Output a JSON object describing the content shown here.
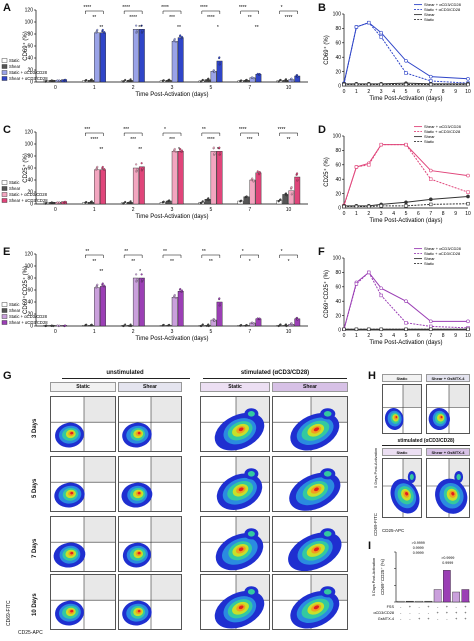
{
  "panels": {
    "A": {
      "letter": "A",
      "ylabel": "CD69⁺ (%)",
      "xlabel": "Time Post-Activation (days)",
      "categories": [
        "0",
        "1",
        "2",
        "3",
        "5",
        "7",
        "10"
      ],
      "yticks": [
        "0",
        "20",
        "40",
        "60",
        "80",
        "100",
        "120"
      ],
      "legend": [
        "Static",
        "Shear",
        "Static + αCD3/CD28",
        "Shear + αCD3/CD28"
      ],
      "stars": [
        "****",
        "****",
        "****",
        "****",
        "****",
        "*",
        "**",
        "****",
        "***",
        "****",
        "**",
        "****",
        "**",
        "**",
        "**",
        "*",
        "**"
      ]
    },
    "B": {
      "letter": "B",
      "ylabel": "CD69⁺ (%)",
      "xlabel": "Time Post-Activation (days)",
      "xticks": [
        "0",
        "1",
        "2",
        "3",
        "4",
        "5",
        "6",
        "7",
        "8",
        "9",
        "10"
      ],
      "yticks": [
        "0",
        "20",
        "40",
        "60",
        "80",
        "100"
      ],
      "legend": [
        "Shear + αCD3/CD28",
        "Static + αCD3/CD28",
        "Shear",
        "Static"
      ]
    },
    "C": {
      "letter": "C",
      "ylabel": "CD25⁺ (%)",
      "xlabel": "Time Post-Activation (days)",
      "categories": [
        "0",
        "1",
        "2",
        "3",
        "5",
        "7",
        "10"
      ],
      "yticks": [
        "0",
        "20",
        "40",
        "60",
        "80",
        "100",
        "120"
      ],
      "legend": [
        "Static",
        "Shear",
        "Static + αCD3/CD28",
        "Shear + αCD3/CD28"
      ],
      "stars": [
        "***",
        "***",
        "*",
        "**",
        "****",
        "****",
        "****",
        "***",
        "***",
        "****",
        "***",
        "**",
        "**",
        "**",
        "*",
        "*"
      ]
    },
    "D": {
      "letter": "D",
      "ylabel": "CD25⁺ (%)",
      "xlabel": "Time Post-Activation (days)",
      "xticks": [
        "0",
        "1",
        "2",
        "3",
        "4",
        "5",
        "6",
        "7",
        "8",
        "9",
        "10"
      ],
      "yticks": [
        "0",
        "20",
        "40",
        "60",
        "80",
        "100"
      ],
      "legend": [
        "Shear + αCD3/CD28",
        "Static + αCD3/CD28",
        "Shear",
        "Static"
      ]
    },
    "E": {
      "letter": "E",
      "ylabel": "CD69⁺CD25⁺ (%)",
      "xlabel": "Time Post-Activation (days)",
      "categories": [
        "0",
        "1",
        "2",
        "3",
        "5",
        "7",
        "10"
      ],
      "yticks": [
        "0",
        "20",
        "40",
        "60",
        "80",
        "100",
        "120"
      ],
      "legend": [
        "Static",
        "Shear",
        "Static + αCD3/CD28",
        "Shear + αCD3/CD28"
      ],
      "stars": [
        "**",
        "**",
        "**",
        "**",
        "*",
        "*",
        "**",
        "**",
        "**",
        "**",
        "*",
        "*",
        "**",
        "*"
      ]
    },
    "F": {
      "letter": "F",
      "ylabel": "CD69⁺CD25⁺ (%)",
      "xlabel": "Time Post-Activation (days)",
      "xticks": [
        "0",
        "1",
        "2",
        "3",
        "4",
        "5",
        "6",
        "7",
        "8",
        "9",
        "10"
      ],
      "yticks": [
        "0",
        "20",
        "40",
        "60",
        "80",
        "100"
      ],
      "legend": [
        "Shear + αCD3/CD28",
        "Static + αCD3/CD28",
        "Shear",
        "Static"
      ]
    },
    "G": {
      "letter": "G",
      "unstim": "unstimulated",
      "stim": "stimulated (αCD3/CD28)",
      "cols": [
        "Static",
        "Shear",
        "Static",
        "Shear"
      ],
      "rows": [
        "3 Days",
        "5 Days",
        "7 Days",
        "10 Days"
      ],
      "xaxis": "CD25-APC",
      "yaxis": "CD69-FITC"
    },
    "H": {
      "letter": "H",
      "cols": [
        "Static",
        "Shear + GsMTX-4",
        "Static",
        "Shear + GsMTX-4"
      ],
      "stim": "stimulated (αCD3/CD28)",
      "side": "5 Days Post-Activation",
      "xaxis": "CD25-APC",
      "yaxis": "CD69-FITC"
    },
    "I": {
      "letter": "I",
      "ylabel": "CD69⁺CD25⁺ (%)",
      "side": "5 Days Post-Activation",
      "pvals": [
        ">0.9999",
        "0.9999",
        "0.9999",
        ">0.9999",
        "0.9999"
      ],
      "rows": [
        "FSS",
        "αCD3/CD28",
        "GsMTX-4"
      ],
      "signs": [
        [
          "-",
          "+",
          "-",
          "+",
          "-",
          "+",
          "-",
          "+"
        ],
        [
          "-",
          "-",
          "-",
          "-",
          "+",
          "+",
          "+",
          "+"
        ],
        [
          "-",
          "-",
          "+",
          "+",
          "-",
          "-",
          "+",
          "+"
        ]
      ]
    }
  },
  "chart_data": [
    {
      "type": "bar",
      "categories": [
        "0",
        "1",
        "2",
        "3",
        "5",
        "7",
        "10"
      ],
      "ylim": [
        0,
        120
      ],
      "series": [
        {
          "name": "Static",
          "values": [
            2,
            2,
            2,
            2,
            2,
            2,
            2
          ]
        },
        {
          "name": "Shear",
          "values": [
            3,
            3,
            3,
            3,
            4,
            3,
            3
          ]
        },
        {
          "name": "Static + αCD3/CD28",
          "values": [
            3,
            82,
            88,
            68,
            18,
            7,
            4
          ]
        },
        {
          "name": "Shear + αCD3/CD28",
          "values": [
            4,
            82,
            88,
            74,
            35,
            13,
            10
          ]
        }
      ]
    },
    {
      "type": "line",
      "x": [
        0,
        1,
        2,
        3,
        5,
        7,
        10
      ],
      "ylim": [
        0,
        100
      ],
      "series": [
        {
          "name": "Shear + αCD3/CD28",
          "values": [
            4,
            82,
            88,
            74,
            35,
            13,
            10
          ]
        },
        {
          "name": "Static + αCD3/CD28",
          "values": [
            3,
            82,
            88,
            68,
            18,
            7,
            4
          ]
        },
        {
          "name": "Shear",
          "values": [
            3,
            3,
            3,
            3,
            4,
            3,
            3
          ]
        },
        {
          "name": "Static",
          "values": [
            2,
            2,
            2,
            2,
            2,
            2,
            2
          ]
        }
      ]
    },
    {
      "type": "bar",
      "categories": [
        "0",
        "1",
        "2",
        "3",
        "5",
        "7",
        "10"
      ],
      "ylim": [
        0,
        120
      ],
      "series": [
        {
          "name": "Static",
          "values": [
            2,
            2,
            2,
            3,
            3,
            5,
            6
          ]
        },
        {
          "name": "Shear",
          "values": [
            3,
            3,
            3,
            5,
            8,
            12,
            16
          ]
        },
        {
          "name": "Static + αCD3/CD28",
          "values": [
            3,
            57,
            60,
            88,
            88,
            40,
            22
          ]
        },
        {
          "name": "Shear + αCD3/CD28",
          "values": [
            4,
            57,
            62,
            88,
            88,
            52,
            45
          ]
        }
      ]
    },
    {
      "type": "line",
      "x": [
        0,
        1,
        2,
        3,
        5,
        7,
        10
      ],
      "ylim": [
        0,
        100
      ],
      "series": [
        {
          "name": "Shear + αCD3/CD28",
          "values": [
            4,
            57,
            62,
            88,
            88,
            52,
            45
          ]
        },
        {
          "name": "Static + αCD3/CD28",
          "values": [
            3,
            57,
            60,
            88,
            88,
            40,
            22
          ]
        },
        {
          "name": "Shear",
          "values": [
            3,
            3,
            3,
            5,
            8,
            12,
            16
          ]
        },
        {
          "name": "Static",
          "values": [
            2,
            2,
            2,
            3,
            3,
            5,
            6
          ]
        }
      ]
    },
    {
      "type": "bar",
      "categories": [
        "0",
        "1",
        "2",
        "3",
        "5",
        "7",
        "10"
      ],
      "ylim": [
        0,
        120
      ],
      "series": [
        {
          "name": "Static",
          "values": [
            1,
            1,
            1,
            1,
            1,
            1,
            1
          ]
        },
        {
          "name": "Shear",
          "values": [
            1,
            1,
            1,
            1,
            1,
            1,
            1
          ]
        },
        {
          "name": "Static + αCD3/CD28",
          "values": [
            1,
            64,
            80,
            48,
            10,
            5,
            3
          ]
        },
        {
          "name": "Shear + αCD3/CD28",
          "values": [
            1,
            66,
            80,
            58,
            40,
            12,
            12
          ]
        }
      ]
    },
    {
      "type": "line",
      "x": [
        0,
        1,
        2,
        3,
        5,
        7,
        10
      ],
      "ylim": [
        0,
        100
      ],
      "series": [
        {
          "name": "Shear + αCD3/CD28",
          "values": [
            1,
            66,
            80,
            58,
            40,
            12,
            12
          ]
        },
        {
          "name": "Static + αCD3/CD28",
          "values": [
            1,
            64,
            80,
            48,
            10,
            5,
            3
          ]
        },
        {
          "name": "Shear",
          "values": [
            1,
            1,
            1,
            1,
            1,
            1,
            1
          ]
        },
        {
          "name": "Static",
          "values": [
            1,
            1,
            1,
            1,
            1,
            1,
            1
          ]
        }
      ]
    },
    {
      "type": "bar",
      "categories": [
        "1",
        "2",
        "3",
        "4",
        "5",
        "6",
        "7",
        "8"
      ],
      "values": [
        1,
        1,
        1,
        1,
        15,
        38,
        12,
        15
      ]
    }
  ],
  "colors": {
    "static": "#ffffff",
    "shear": "#555555",
    "blue": "#2f45c8",
    "bluelight": "#9aa3e8",
    "pink": "#e0457a",
    "pinklight": "#f3a6c0",
    "purple": "#9b3fb5",
    "purplelight": "#caa0dc"
  }
}
